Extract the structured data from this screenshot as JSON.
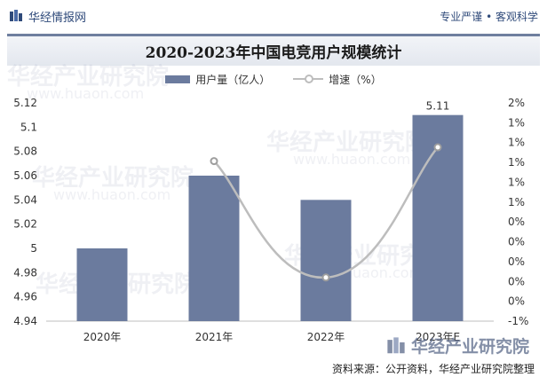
{
  "header": {
    "brand": "华经情报网",
    "tagline": "专业严谨 • 客观科学"
  },
  "watermark": {
    "text": "华经产业研究院",
    "url": "www.huaon.com"
  },
  "footer": {
    "brand": "华经产业研究院",
    "source": "资料来源：公开资料，华经产业研究院整理"
  },
  "colors": {
    "bar": "#6b7b9e",
    "line": "#bdbdbd",
    "title_accent": "#6f7f9f"
  },
  "chart_data": {
    "type": "bar",
    "title": "2020-2023年中国电竞用户规模统计",
    "categories": [
      "2020年",
      "2021年",
      "2022年",
      "2023年E"
    ],
    "series": [
      {
        "name": "用户量（亿人）",
        "type": "bar",
        "axis": "left",
        "values": [
          5.0,
          5.06,
          5.04,
          5.11
        ]
      },
      {
        "name": "增速（%）",
        "type": "line",
        "axis": "right",
        "values": [
          null,
          0.012,
          -0.004,
          0.0139
        ]
      }
    ],
    "data_labels": [
      null,
      null,
      null,
      "5.11"
    ],
    "y_left": {
      "ylim": [
        4.94,
        5.12
      ],
      "ticks": [
        "4.94",
        "4.96",
        "4.98",
        "5",
        "5.02",
        "5.04",
        "5.06",
        "5.08",
        "5.1",
        "5.12"
      ]
    },
    "y_right": {
      "ylim": [
        -0.01,
        0.02
      ],
      "ticks": [
        "-1%",
        "0%",
        "0%",
        "0%",
        "0%",
        "0%",
        "1%",
        "1%",
        "1%",
        "1%",
        "1%",
        "2%"
      ]
    },
    "legend_position": "top-center",
    "grid": false
  }
}
